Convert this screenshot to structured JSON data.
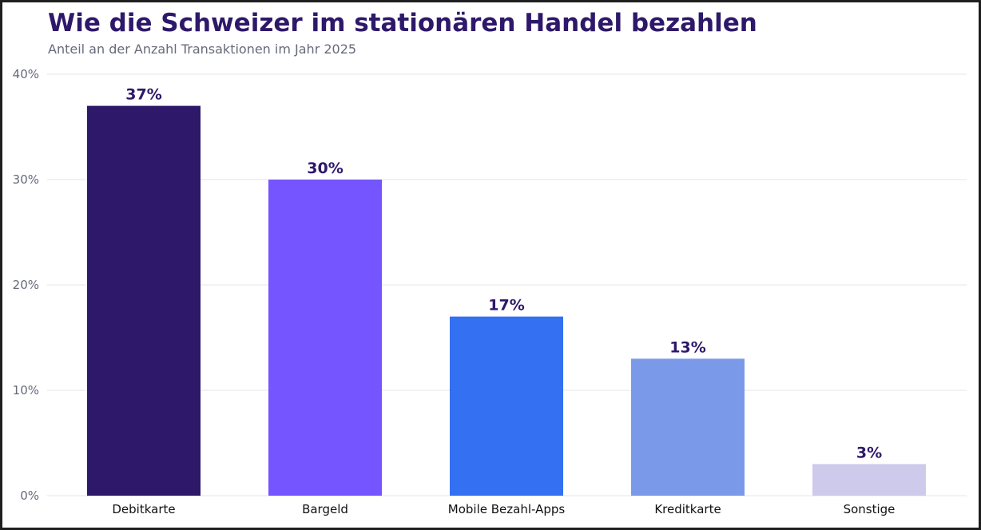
{
  "chart_data": {
    "type": "bar",
    "title": "Wie die Schweizer im stationären Handel bezahlen",
    "subtitle": "Anteil an der Anzahl Transaktionen im Jahr 2025",
    "categories": [
      "Debitkarte",
      "Bargeld",
      "Mobile Bezahl-Apps",
      "Kreditkarte",
      "Sonstige"
    ],
    "values": [
      37,
      30,
      17,
      13,
      3
    ],
    "value_labels": [
      "37%",
      "30%",
      "17%",
      "13%",
      "3%"
    ],
    "colors": [
      "#2e186a",
      "#7555ff",
      "#3370f2",
      "#7a99e8",
      "#cecaec"
    ],
    "ylim": [
      0,
      40
    ],
    "yticks": [
      0,
      10,
      20,
      30,
      40
    ],
    "ytick_labels": [
      "0%",
      "10%",
      "20%",
      "30%",
      "40%"
    ],
    "xlabel": "",
    "ylabel": "",
    "grid": true,
    "legend": false
  }
}
